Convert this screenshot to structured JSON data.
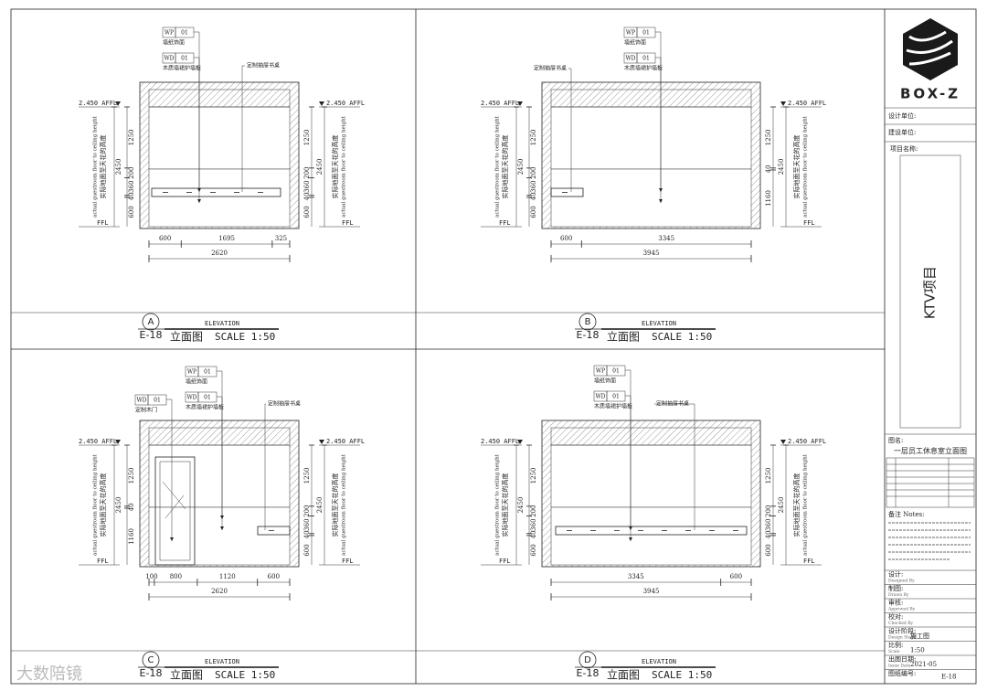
{
  "panels": [
    {
      "letter": "A",
      "sheet": "E-18",
      "caption": "ELEVATION",
      "name": "立面图",
      "scale": "SCALE 1:50",
      "level_top": "2.450 AFFL",
      "level_floor": "FFL",
      "note_cn": "实际地面至天花的高度",
      "note_en": "actual guestroom floor to ceiling height",
      "total_height": 2450,
      "left_heights": [
        600,
        40,
        360,
        200,
        1250
      ],
      "right_heights": [
        600,
        40,
        360,
        200,
        1250
      ],
      "widths": [
        600,
        1695,
        325
      ],
      "total_width": 2620,
      "tags": [
        {
          "code": "WP",
          "num": "01",
          "label": "墙纸饰面"
        },
        {
          "code": "WD",
          "num": "01",
          "label": "木质墙裙护墙板"
        }
      ],
      "callout": "定制抽屉书桌"
    },
    {
      "letter": "B",
      "sheet": "E-18",
      "caption": "ELEVATION",
      "name": "立面图",
      "scale": "SCALE 1:50",
      "level_top": "2.450 AFFL",
      "level_floor": "FFL",
      "note_cn": "实际地面至天花的高度",
      "note_en": "actual guestroom floor to ceiling height",
      "total_height": 2450,
      "left_heights": [
        600,
        40,
        360,
        200,
        1250
      ],
      "right_heights": [
        1160,
        40,
        1250
      ],
      "widths": [
        600,
        3345
      ],
      "total_width": 3945,
      "tags": [
        {
          "code": "WP",
          "num": "01",
          "label": "墙纸饰面"
        },
        {
          "code": "WD",
          "num": "01",
          "label": "木质墙裙护墙板"
        }
      ],
      "callout": "定制抽屉书桌"
    },
    {
      "letter": "C",
      "sheet": "E-18",
      "caption": "ELEVATION",
      "name": "立面图",
      "scale": "SCALE 1:50",
      "level_top": "2.450 AFFL",
      "level_floor": "FFL",
      "note_cn": "实际地面至天花的高度",
      "note_en": "actual guestroom floor to ceiling height",
      "total_height": 2450,
      "left_heights": [
        1160,
        40,
        1250
      ],
      "right_heights": [
        600,
        40,
        360,
        200,
        1250
      ],
      "widths": [
        100,
        800,
        1120,
        600
      ],
      "total_width": 2620,
      "tags": [
        {
          "code": "WD",
          "num": "01",
          "label": "定制木门"
        },
        {
          "code": "WP",
          "num": "01",
          "label": "墙纸饰面"
        },
        {
          "code": "WD",
          "num": "01",
          "label": "木质墙裙护墙板"
        }
      ],
      "callout": "定制抽屉书桌"
    },
    {
      "letter": "D",
      "sheet": "E-18",
      "caption": "ELEVATION",
      "name": "立面图",
      "scale": "SCALE 1:50",
      "level_top": "2.450 AFFL",
      "level_floor": "FFL",
      "note_cn": "实际地面至天花的高度",
      "note_en": "actual guestroom floor to ceiling height",
      "total_height": 2450,
      "left_heights": [
        600,
        40,
        360,
        200,
        1250
      ],
      "right_heights": [
        600,
        40,
        360,
        200,
        1250
      ],
      "widths": [
        3345,
        600
      ],
      "total_width": 3945,
      "tags": [
        {
          "code": "WP",
          "num": "01",
          "label": "墙纸饰面"
        },
        {
          "code": "WD",
          "num": "01",
          "label": "木质墙裙护墙板"
        }
      ],
      "callout": "定制抽屉书桌"
    }
  ],
  "title_block": {
    "logo": "BOX-Z",
    "design_unit": "设计单位:",
    "client": "建设单位:",
    "project_label": "项目名称:",
    "project": "KTV项目",
    "drawing_label": "图名:",
    "drawing": "一层员工休息室立面图",
    "notes_title": "备注 Notes:",
    "rows": [
      {
        "label": "设计:",
        "sub": "Designed By"
      },
      {
        "label": "制图:",
        "sub": "Drawn By"
      },
      {
        "label": "审核:",
        "sub": "Approved By"
      },
      {
        "label": "校对:",
        "sub": "Checked By"
      },
      {
        "label": "设计阶段:",
        "sub": "Design Stage",
        "value": "施工图"
      },
      {
        "label": "比例:",
        "sub": "Scale",
        "value": "1:50"
      },
      {
        "label": "出图日期:",
        "sub": "Issue Date",
        "value": "2021-05"
      },
      {
        "label": "图纸编号:",
        "value": "E-18"
      }
    ]
  },
  "watermark": "大数陪镜"
}
